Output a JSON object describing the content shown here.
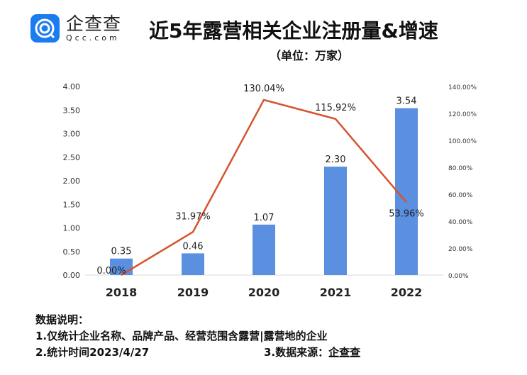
{
  "logo": {
    "cn": "企查查",
    "en": "Qcc.com"
  },
  "chart_data": {
    "type": "bar+line",
    "title": "近5年露营相关企业注册量&增速",
    "subtitle": "（单位：万家）",
    "categories": [
      "2018",
      "2019",
      "2020",
      "2021",
      "2022"
    ],
    "series": [
      {
        "name": "注册量",
        "type": "bar",
        "axis": "left",
        "values": [
          0.35,
          0.46,
          1.07,
          2.3,
          3.54
        ],
        "labels": [
          "0.35",
          "0.46",
          "1.07",
          "2.30",
          "3.54"
        ],
        "color": "#5b8fe0"
      },
      {
        "name": "增速",
        "type": "line",
        "axis": "right",
        "values": [
          0,
          31.97,
          130.04,
          115.92,
          53.96
        ],
        "labels": [
          "0.00%",
          "31.97%",
          "130.04%",
          "115.92%",
          "53.96%"
        ],
        "color": "#d6532f"
      }
    ],
    "ylim": [
      0,
      4
    ],
    "yticks": [
      "0.00",
      "0.50",
      "1.00",
      "1.50",
      "2.00",
      "2.50",
      "3.00",
      "3.50",
      "4.00"
    ],
    "y2lim": [
      0,
      140
    ],
    "y2ticks": [
      "0.00%",
      "20.00%",
      "40.00%",
      "60.00%",
      "80.00%",
      "100.00%",
      "120.00%",
      "140.00%"
    ]
  },
  "notes": {
    "heading": "数据说明：",
    "line1": "1.仅统计企业名称、品牌产品、经营范围含露营|露营地的企业",
    "line2": "2.统计时间2023/4/27",
    "line3_prefix": "3.数据来源：",
    "line3_source": "企查查"
  }
}
